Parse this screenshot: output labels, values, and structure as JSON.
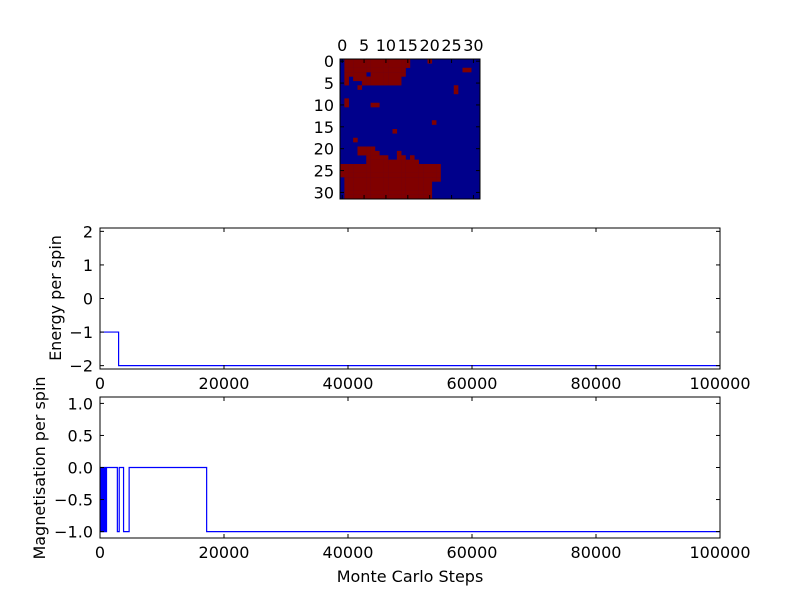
{
  "figure": {
    "background": "#ffffff",
    "colors": {
      "spin_up": "#800000",
      "spin_down": "#00008b",
      "line": "#0000ff",
      "axes": "#000000"
    }
  },
  "chart_data": [
    {
      "type": "heatmap",
      "title": "",
      "xlabel": "",
      "ylabel": "",
      "xticks": [
        "0",
        "5",
        "10",
        "15",
        "20",
        "25",
        "30"
      ],
      "yticks": [
        "0",
        "5",
        "10",
        "15",
        "20",
        "25",
        "30"
      ],
      "xlim": [
        -0.5,
        31.5
      ],
      "ylim": [
        31.5,
        -0.5
      ],
      "grid_size": 32,
      "legend": "none",
      "up_cells": [
        [
          0,
          1
        ],
        [
          0,
          2
        ],
        [
          0,
          3
        ],
        [
          0,
          4
        ],
        [
          0,
          5
        ],
        [
          0,
          6
        ],
        [
          0,
          7
        ],
        [
          0,
          8
        ],
        [
          0,
          9
        ],
        [
          0,
          10
        ],
        [
          0,
          11
        ],
        [
          0,
          12
        ],
        [
          0,
          13
        ],
        [
          0,
          14
        ],
        [
          0,
          15
        ],
        [
          0,
          20
        ],
        [
          1,
          1
        ],
        [
          1,
          2
        ],
        [
          1,
          3
        ],
        [
          1,
          4
        ],
        [
          1,
          5
        ],
        [
          1,
          6
        ],
        [
          1,
          7
        ],
        [
          1,
          8
        ],
        [
          1,
          9
        ],
        [
          1,
          10
        ],
        [
          1,
          11
        ],
        [
          1,
          12
        ],
        [
          1,
          13
        ],
        [
          1,
          14
        ],
        [
          1,
          15
        ],
        [
          2,
          1
        ],
        [
          2,
          2
        ],
        [
          2,
          3
        ],
        [
          2,
          4
        ],
        [
          2,
          5
        ],
        [
          2,
          6
        ],
        [
          2,
          7
        ],
        [
          2,
          8
        ],
        [
          2,
          9
        ],
        [
          2,
          10
        ],
        [
          2,
          11
        ],
        [
          2,
          12
        ],
        [
          2,
          13
        ],
        [
          2,
          14
        ],
        [
          2,
          28
        ],
        [
          2,
          29
        ],
        [
          3,
          1
        ],
        [
          3,
          2
        ],
        [
          3,
          3
        ],
        [
          3,
          4
        ],
        [
          3,
          5
        ],
        [
          3,
          7
        ],
        [
          3,
          8
        ],
        [
          3,
          9
        ],
        [
          3,
          10
        ],
        [
          3,
          11
        ],
        [
          3,
          12
        ],
        [
          3,
          13
        ],
        [
          3,
          14
        ],
        [
          4,
          1
        ],
        [
          4,
          3
        ],
        [
          4,
          4
        ],
        [
          4,
          5
        ],
        [
          4,
          6
        ],
        [
          4,
          7
        ],
        [
          4,
          8
        ],
        [
          4,
          9
        ],
        [
          4,
          10
        ],
        [
          4,
          11
        ],
        [
          4,
          12
        ],
        [
          4,
          13
        ],
        [
          5,
          1
        ],
        [
          5,
          5
        ],
        [
          5,
          6
        ],
        [
          5,
          7
        ],
        [
          5,
          8
        ],
        [
          5,
          9
        ],
        [
          5,
          10
        ],
        [
          5,
          11
        ],
        [
          5,
          12
        ],
        [
          5,
          13
        ],
        [
          6,
          4
        ],
        [
          6,
          26
        ],
        [
          7,
          26
        ],
        [
          9,
          1
        ],
        [
          10,
          1
        ],
        [
          10,
          7
        ],
        [
          10,
          8
        ],
        [
          14,
          21
        ],
        [
          16,
          12
        ],
        [
          18,
          3
        ],
        [
          20,
          4
        ],
        [
          20,
          5
        ],
        [
          20,
          6
        ],
        [
          20,
          7
        ],
        [
          21,
          4
        ],
        [
          21,
          5
        ],
        [
          21,
          6
        ],
        [
          21,
          7
        ],
        [
          21,
          8
        ],
        [
          21,
          13
        ],
        [
          22,
          6
        ],
        [
          22,
          7
        ],
        [
          22,
          8
        ],
        [
          22,
          9
        ],
        [
          22,
          10
        ],
        [
          22,
          13
        ],
        [
          22,
          14
        ],
        [
          22,
          16
        ],
        [
          23,
          6
        ],
        [
          23,
          7
        ],
        [
          23,
          8
        ],
        [
          23,
          9
        ],
        [
          23,
          10
        ],
        [
          23,
          11
        ],
        [
          23,
          12
        ],
        [
          23,
          13
        ],
        [
          23,
          14
        ],
        [
          23,
          15
        ],
        [
          23,
          16
        ],
        [
          23,
          17
        ],
        [
          24,
          0
        ],
        [
          24,
          1
        ],
        [
          24,
          2
        ],
        [
          24,
          3
        ],
        [
          24,
          4
        ],
        [
          24,
          5
        ],
        [
          24,
          6
        ],
        [
          24,
          7
        ],
        [
          24,
          8
        ],
        [
          24,
          9
        ],
        [
          24,
          10
        ],
        [
          24,
          11
        ],
        [
          24,
          12
        ],
        [
          24,
          13
        ],
        [
          24,
          14
        ],
        [
          24,
          15
        ],
        [
          24,
          16
        ],
        [
          24,
          17
        ],
        [
          24,
          18
        ],
        [
          24,
          19
        ],
        [
          24,
          20
        ],
        [
          24,
          21
        ],
        [
          24,
          22
        ],
        [
          25,
          0
        ],
        [
          25,
          1
        ],
        [
          25,
          2
        ],
        [
          25,
          3
        ],
        [
          25,
          4
        ],
        [
          25,
          5
        ],
        [
          25,
          6
        ],
        [
          25,
          7
        ],
        [
          25,
          8
        ],
        [
          25,
          9
        ],
        [
          25,
          10
        ],
        [
          25,
          11
        ],
        [
          25,
          12
        ],
        [
          25,
          13
        ],
        [
          25,
          14
        ],
        [
          25,
          15
        ],
        [
          25,
          16
        ],
        [
          25,
          17
        ],
        [
          25,
          18
        ],
        [
          25,
          19
        ],
        [
          25,
          20
        ],
        [
          25,
          21
        ],
        [
          25,
          22
        ],
        [
          26,
          0
        ],
        [
          26,
          1
        ],
        [
          26,
          2
        ],
        [
          26,
          3
        ],
        [
          26,
          4
        ],
        [
          26,
          5
        ],
        [
          26,
          6
        ],
        [
          26,
          7
        ],
        [
          26,
          8
        ],
        [
          26,
          9
        ],
        [
          26,
          10
        ],
        [
          26,
          11
        ],
        [
          26,
          12
        ],
        [
          26,
          13
        ],
        [
          26,
          14
        ],
        [
          26,
          15
        ],
        [
          26,
          16
        ],
        [
          26,
          17
        ],
        [
          26,
          18
        ],
        [
          26,
          19
        ],
        [
          26,
          20
        ],
        [
          26,
          21
        ],
        [
          26,
          22
        ],
        [
          27,
          1
        ],
        [
          27,
          2
        ],
        [
          27,
          3
        ],
        [
          27,
          4
        ],
        [
          27,
          5
        ],
        [
          27,
          6
        ],
        [
          27,
          7
        ],
        [
          27,
          8
        ],
        [
          27,
          9
        ],
        [
          27,
          10
        ],
        [
          27,
          11
        ],
        [
          27,
          12
        ],
        [
          27,
          13
        ],
        [
          27,
          14
        ],
        [
          27,
          15
        ],
        [
          27,
          16
        ],
        [
          27,
          17
        ],
        [
          27,
          18
        ],
        [
          27,
          19
        ],
        [
          27,
          20
        ],
        [
          27,
          21
        ],
        [
          27,
          22
        ],
        [
          28,
          1
        ],
        [
          28,
          2
        ],
        [
          28,
          3
        ],
        [
          28,
          4
        ],
        [
          28,
          5
        ],
        [
          28,
          6
        ],
        [
          28,
          7
        ],
        [
          28,
          8
        ],
        [
          28,
          9
        ],
        [
          28,
          10
        ],
        [
          28,
          11
        ],
        [
          28,
          12
        ],
        [
          28,
          13
        ],
        [
          28,
          14
        ],
        [
          28,
          15
        ],
        [
          28,
          16
        ],
        [
          28,
          17
        ],
        [
          28,
          18
        ],
        [
          28,
          19
        ],
        [
          28,
          20
        ],
        [
          29,
          1
        ],
        [
          29,
          2
        ],
        [
          29,
          3
        ],
        [
          29,
          4
        ],
        [
          29,
          5
        ],
        [
          29,
          6
        ],
        [
          29,
          7
        ],
        [
          29,
          8
        ],
        [
          29,
          9
        ],
        [
          29,
          10
        ],
        [
          29,
          11
        ],
        [
          29,
          12
        ],
        [
          29,
          13
        ],
        [
          29,
          14
        ],
        [
          29,
          15
        ],
        [
          29,
          16
        ],
        [
          29,
          17
        ],
        [
          29,
          18
        ],
        [
          29,
          19
        ],
        [
          29,
          20
        ],
        [
          30,
          1
        ],
        [
          30,
          2
        ],
        [
          30,
          3
        ],
        [
          30,
          4
        ],
        [
          30,
          5
        ],
        [
          30,
          6
        ],
        [
          30,
          7
        ],
        [
          30,
          8
        ],
        [
          30,
          9
        ],
        [
          30,
          10
        ],
        [
          30,
          11
        ],
        [
          30,
          12
        ],
        [
          30,
          13
        ],
        [
          30,
          14
        ],
        [
          30,
          15
        ],
        [
          30,
          16
        ],
        [
          30,
          17
        ],
        [
          30,
          18
        ],
        [
          30,
          19
        ],
        [
          30,
          20
        ],
        [
          31,
          1
        ],
        [
          31,
          2
        ],
        [
          31,
          3
        ],
        [
          31,
          4
        ],
        [
          31,
          5
        ],
        [
          31,
          6
        ],
        [
          31,
          7
        ],
        [
          31,
          8
        ],
        [
          31,
          9
        ],
        [
          31,
          10
        ],
        [
          31,
          11
        ],
        [
          31,
          12
        ],
        [
          31,
          13
        ],
        [
          31,
          14
        ],
        [
          31,
          15
        ],
        [
          31,
          16
        ],
        [
          31,
          17
        ],
        [
          31,
          18
        ],
        [
          31,
          19
        ],
        [
          31,
          20
        ]
      ]
    },
    {
      "type": "line",
      "title": "",
      "xlabel": "",
      "ylabel": "Energy per spin",
      "xlim": [
        0,
        100000
      ],
      "ylim": [
        -2.1,
        2.1
      ],
      "xticks": [
        0,
        20000,
        40000,
        60000,
        80000,
        100000
      ],
      "yticks": [
        -2,
        -1,
        0,
        1,
        2
      ],
      "grid": false,
      "legend": "none",
      "series": [
        {
          "x": [
            0,
            3000,
            3000,
            100000
          ],
          "y": [
            -1.0,
            -1.0,
            -2.0,
            -2.0
          ]
        }
      ]
    },
    {
      "type": "line",
      "title": "",
      "xlabel": "Monte Carlo Steps",
      "ylabel": "Magnetisation per spin",
      "xlim": [
        0,
        100000
      ],
      "ylim": [
        -1.1,
        1.1
      ],
      "xticks": [
        0,
        20000,
        40000,
        60000,
        80000,
        100000
      ],
      "yticks": [
        "-1.0",
        "-0.5",
        "0.0",
        "0.5",
        "1.0"
      ],
      "grid": false,
      "legend": "none",
      "series": [
        {
          "x": [
            0,
            150,
            150,
            300,
            300,
            450,
            450,
            600,
            600,
            750,
            750,
            900,
            900,
            1050,
            1050,
            2800,
            2800,
            3100,
            3100,
            3800,
            3800,
            4700,
            4700,
            17200,
            17200,
            100000
          ],
          "y": [
            -1,
            -1,
            0,
            0,
            -1,
            -1,
            0,
            0,
            -1,
            -1,
            0,
            0,
            -1,
            -1,
            0,
            0,
            -1,
            -1,
            0,
            0,
            -1,
            -1,
            0,
            0,
            -1,
            -1
          ]
        }
      ]
    }
  ]
}
